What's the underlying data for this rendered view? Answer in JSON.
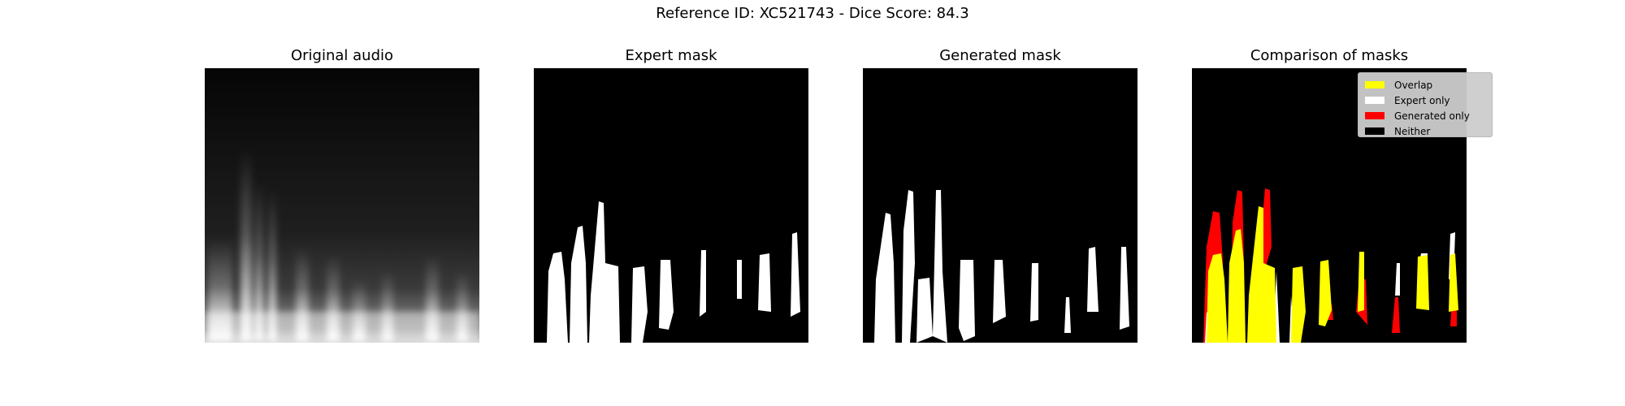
{
  "figure": {
    "suptitle": "Reference ID: XC521743 - Dice Score: 84.3"
  },
  "panels": [
    {
      "title": "Original audio"
    },
    {
      "title": "Expert mask"
    },
    {
      "title": "Generated mask"
    },
    {
      "title": "Comparison of masks"
    }
  ],
  "legend": {
    "items": [
      {
        "label": "Overlap",
        "color": "#ffff00"
      },
      {
        "label": "Expert only",
        "color": "#ffffff"
      },
      {
        "label": "Generated only",
        "color": "#ff0000"
      },
      {
        "label": "Neither",
        "color": "#000000"
      }
    ]
  },
  "colors": {
    "background": "#000000",
    "mask": "#ffffff",
    "overlap": "#ffff00",
    "expert_only": "#ffffff",
    "generated_only": "#ff0000"
  }
}
